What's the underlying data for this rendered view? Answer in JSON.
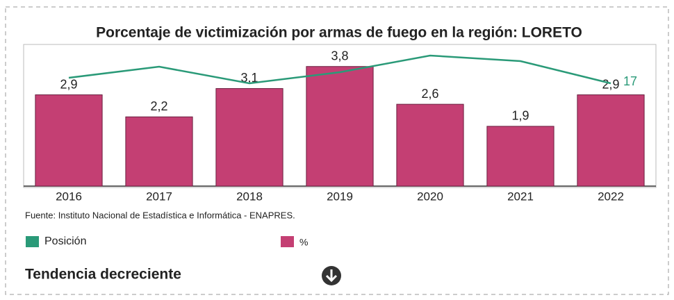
{
  "chart_data": {
    "type": "bar",
    "title": "Porcentaje de victimización por armas de fuego en la región: LORETO",
    "categories": [
      "2016",
      "2017",
      "2018",
      "2019",
      "2020",
      "2021",
      "2022"
    ],
    "series": [
      {
        "name": "%",
        "type": "bar",
        "color": "#c43f73",
        "values": [
          2.9,
          2.2,
          3.1,
          3.8,
          2.6,
          1.9,
          2.9
        ],
        "value_labels": [
          "2,9",
          "2,2",
          "3,1",
          "3,8",
          "2,6",
          "1,9",
          "2,9"
        ]
      },
      {
        "name": "Posición",
        "type": "line",
        "axis": "y2",
        "color": "#2a9a78",
        "values": [
          18,
          20,
          17,
          19,
          22,
          21,
          17
        ]
      }
    ],
    "ylim": [
      0,
      4.5
    ],
    "y2lim": [
      -1.5,
      24
    ],
    "source": "Fuente: Instituto Nacional de Estadística e Informática - ENAPRES.",
    "trend": "Tendencia decreciente"
  }
}
